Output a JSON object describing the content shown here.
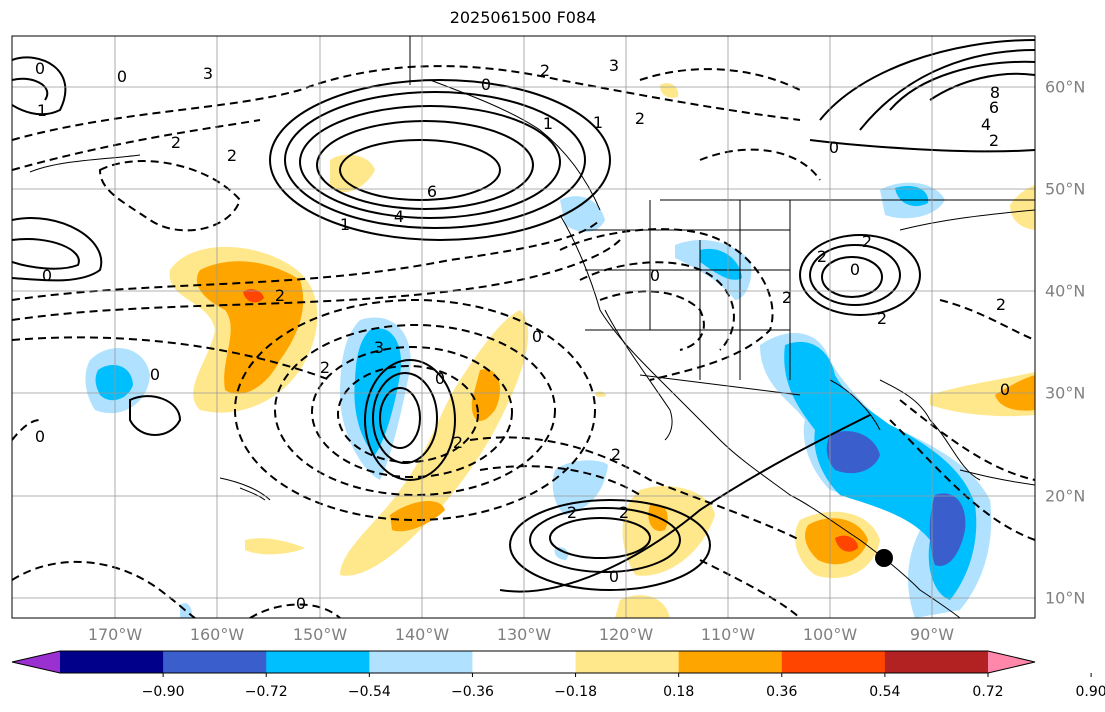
{
  "title": "2025061500 F084",
  "lon_labels": [
    "170°W",
    "160°W",
    "150°W",
    "140°W",
    "130°W",
    "120°W",
    "110°W",
    "100°W",
    "90°W"
  ],
  "lat_labels": [
    "60°N",
    "50°N",
    "40°N",
    "30°N",
    "20°N",
    "10°N"
  ],
  "colorbar": {
    "ticks": [
      "−0.90",
      "−0.72",
      "−0.54",
      "−0.36",
      "−0.18",
      "0.18",
      "0.36",
      "0.54",
      "0.72",
      "0.90"
    ],
    "colors": [
      "#9b30d0",
      "#00008b",
      "#3a5fcd",
      "#00bfff",
      "#b0e2ff",
      "#ffffff",
      "#ffe88c",
      "#ffa500",
      "#ff4500",
      "#b22222",
      "#ff88aa"
    ]
  },
  "contour_labels": [
    "0",
    "3",
    "2",
    "1",
    "0",
    "1",
    "2",
    "3",
    "2",
    "0",
    "1",
    "6",
    "4",
    "1",
    "0",
    "2",
    "0",
    "2",
    "2",
    "2",
    "2",
    "2",
    "8",
    "6",
    "4",
    "2",
    "0",
    "2",
    "0",
    "0",
    "2",
    "3",
    "0",
    "2",
    "0",
    "2",
    "2",
    "2",
    "0",
    "0",
    "0",
    "0"
  ],
  "marker": "storm-center"
}
